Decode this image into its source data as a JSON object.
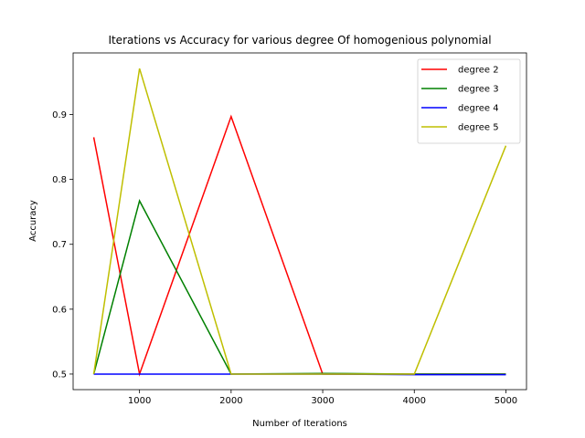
{
  "chart_data": {
    "type": "line",
    "title": "Iterations vs Accuracy for various degree Of homogenious polynomial",
    "xlabel": "Number of Iterations",
    "ylabel": "Accuracy",
    "x": [
      500,
      1000,
      2000,
      3000,
      4000,
      5000
    ],
    "xticks": [
      1000,
      2000,
      3000,
      4000,
      5000
    ],
    "yticks": [
      0.5,
      0.6,
      0.7,
      0.8,
      0.9
    ],
    "xlim": [
      275,
      5225
    ],
    "ylim": [
      0.476,
      0.995
    ],
    "grid": false,
    "legend_position": "top-right",
    "series": [
      {
        "name": "degree 2",
        "color": "#ff0000",
        "values": [
          0.865,
          0.5,
          0.897,
          0.5,
          0.5,
          0.5
        ]
      },
      {
        "name": "degree 3",
        "color": "#008000",
        "values": [
          0.5,
          0.767,
          0.5,
          0.501,
          0.5,
          0.5
        ]
      },
      {
        "name": "degree 4",
        "color": "#0000ff",
        "values": [
          0.5,
          0.5,
          0.5,
          0.5,
          0.499,
          0.499
        ]
      },
      {
        "name": "degree 5",
        "color": "#bfbf00",
        "values": [
          0.5,
          0.971,
          0.5,
          0.5,
          0.5,
          0.852
        ]
      }
    ]
  }
}
